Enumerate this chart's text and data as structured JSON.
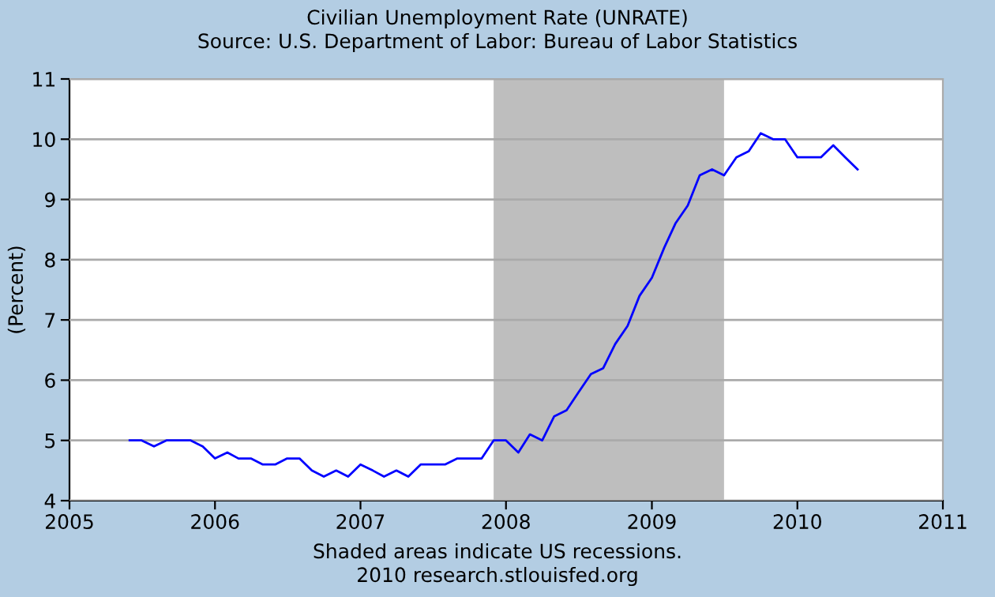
{
  "chart_data": {
    "type": "line",
    "title": "Civilian Unemployment Rate (UNRATE)",
    "subtitle": "Source: U.S. Department of Labor: Bureau of Labor Statistics",
    "ylabel": "(Percent)",
    "x": [
      "2005-06",
      "2005-07",
      "2005-08",
      "2005-09",
      "2005-10",
      "2005-11",
      "2005-12",
      "2006-01",
      "2006-02",
      "2006-03",
      "2006-04",
      "2006-05",
      "2006-06",
      "2006-07",
      "2006-08",
      "2006-09",
      "2006-10",
      "2006-11",
      "2006-12",
      "2007-01",
      "2007-02",
      "2007-03",
      "2007-04",
      "2007-05",
      "2007-06",
      "2007-07",
      "2007-08",
      "2007-09",
      "2007-10",
      "2007-11",
      "2007-12",
      "2008-01",
      "2008-02",
      "2008-03",
      "2008-04",
      "2008-05",
      "2008-06",
      "2008-07",
      "2008-08",
      "2008-09",
      "2008-10",
      "2008-11",
      "2008-12",
      "2009-01",
      "2009-02",
      "2009-03",
      "2009-04",
      "2009-05",
      "2009-06",
      "2009-07",
      "2009-08",
      "2009-09",
      "2009-10",
      "2009-11",
      "2009-12",
      "2010-01",
      "2010-02",
      "2010-03",
      "2010-04",
      "2010-05",
      "2010-06"
    ],
    "series": [
      {
        "color": "#0000ff",
        "values": [
          5.0,
          5.0,
          4.9,
          5.0,
          5.0,
          5.0,
          4.9,
          4.7,
          4.8,
          4.7,
          4.7,
          4.6,
          4.6,
          4.7,
          4.7,
          4.5,
          4.4,
          4.5,
          4.4,
          4.6,
          4.5,
          4.4,
          4.5,
          4.4,
          4.6,
          4.6,
          4.6,
          4.7,
          4.7,
          4.7,
          5.0,
          5.0,
          4.8,
          5.1,
          5.0,
          5.4,
          5.5,
          5.8,
          6.1,
          6.2,
          6.6,
          6.9,
          7.4,
          7.7,
          8.2,
          8.6,
          8.9,
          9.4,
          9.5,
          9.4,
          9.7,
          9.8,
          10.1,
          10.0,
          10.0,
          9.7,
          9.7,
          9.7,
          9.9,
          9.7,
          9.5
        ]
      }
    ],
    "xlim": [
      "2005-01-01",
      "2011-01-01"
    ],
    "xticks": [
      {
        "value": "2005-01-01",
        "label": "2005"
      },
      {
        "value": "2006-01-01",
        "label": "2006"
      },
      {
        "value": "2007-01-01",
        "label": "2007"
      },
      {
        "value": "2008-01-01",
        "label": "2008"
      },
      {
        "value": "2009-01-01",
        "label": "2009"
      },
      {
        "value": "2010-01-01",
        "label": "2010"
      },
      {
        "value": "2011-01-01",
        "label": "2011"
      }
    ],
    "ylim": [
      4,
      11
    ],
    "yticks": [
      4,
      5,
      6,
      7,
      8,
      9,
      10,
      11
    ],
    "bands": [
      {
        "axis": "x",
        "from": "2007-12-01",
        "to": "2009-07-01",
        "color": "#bebebe"
      }
    ],
    "grid": "y",
    "line_style": "solid",
    "marker": "none",
    "annotations": [
      "Shaded areas indicate US recessions.",
      "2010 research.stlouisfed.org"
    ]
  }
}
